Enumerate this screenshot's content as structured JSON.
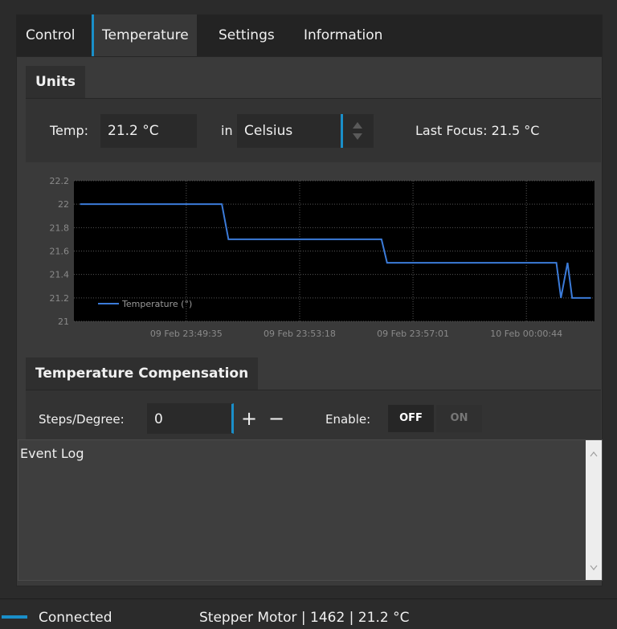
{
  "tabs": [
    "Control",
    "Temperature",
    "Settings",
    "Information"
  ],
  "units": {
    "title": "Units",
    "temp_label": "Temp:",
    "temp_value": "21.2 °C",
    "in_label": "in",
    "unit": "Celsius",
    "last_focus": "Last Focus: 21.5 °C"
  },
  "chart_data": {
    "type": "line",
    "x": [
      "09 Feb 23:46:06",
      "09 Feb 23:50:45",
      "09 Feb 23:50:58",
      "09 Feb 23:55:59",
      "09 Feb 23:56:10",
      "10 Feb 00:01:43",
      "10 Feb 00:01:52",
      "10 Feb 00:02:05",
      "10 Feb 00:02:14",
      "10 Feb 00:02:51"
    ],
    "series": [
      {
        "name": "Temperature (°)",
        "color": "#3b7bd9",
        "values": [
          22,
          22,
          21.7,
          21.7,
          21.5,
          21.5,
          21.2,
          21.5,
          21.2,
          21.2
        ]
      }
    ],
    "xlim": [
      "09 Feb 23:45:54",
      "10 Feb 00:02:58"
    ],
    "xticks": [
      "09 Feb 23:49:35",
      "09 Feb 23:53:18",
      "09 Feb 23:57:01",
      "10 Feb 00:00:44"
    ],
    "ylim": [
      21,
      22.2
    ],
    "yticks": [
      21,
      21.2,
      21.4,
      21.6,
      21.8,
      22,
      22.2
    ],
    "grid": true
  },
  "compensation": {
    "title": "Temperature Compensation",
    "steps_label": "Steps/Degree:",
    "steps_value": "0",
    "plus": "+",
    "minus": "−",
    "enable_label": "Enable:",
    "off": "OFF",
    "on": "ON"
  },
  "event_log": {
    "label": "Event Log"
  },
  "status": {
    "connection": "Connected",
    "info": "Stepper Motor | 1462 | 21.2 °C"
  }
}
